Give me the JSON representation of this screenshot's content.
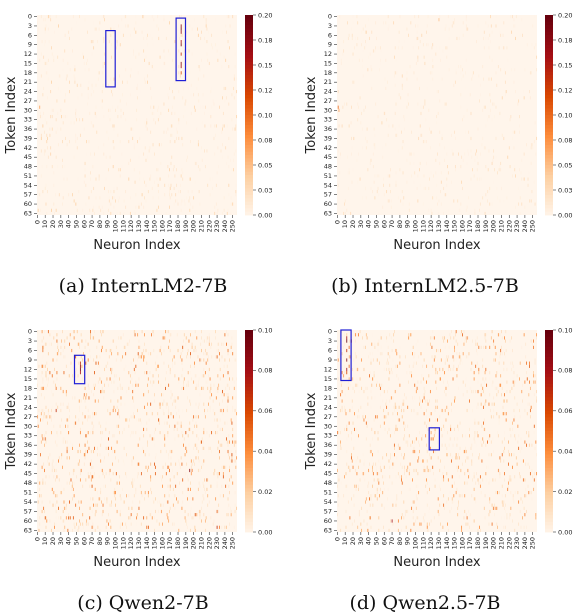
{
  "chart_data": [
    {
      "type": "heatmap",
      "caption": "(a)  InternLM2-7B",
      "xlabel": "Neuron Index",
      "ylabel": "Token Index",
      "x_ticks": [
        0,
        10,
        20,
        30,
        40,
        50,
        60,
        70,
        80,
        90,
        100,
        110,
        120,
        130,
        140,
        150,
        160,
        170,
        180,
        190,
        200,
        210,
        220,
        230,
        240,
        250
      ],
      "y_ticks": [
        0,
        3,
        6,
        9,
        12,
        15,
        18,
        21,
        24,
        27,
        30,
        33,
        36,
        39,
        42,
        45,
        48,
        51,
        54,
        57,
        60,
        63
      ],
      "colorbar": {
        "ticks": [
          "0.00",
          "0.03",
          "0.05",
          "0.08",
          "0.10",
          "0.12",
          "0.15",
          "0.18",
          "0.20"
        ],
        "min": 0,
        "max": 0.2
      },
      "colormap": [
        "#fff5eb",
        "#fdd0a2",
        "#fd8d3c",
        "#d94801",
        "#a50f15",
        "#67000d"
      ],
      "seed": 11,
      "density": 0.05,
      "max_noise": 0.035,
      "highlights": [
        {
          "x0": 88,
          "x1": 100,
          "y0": 5,
          "y1": 23
        },
        {
          "x0": 178,
          "x1": 190,
          "y0": 1,
          "y1": 21
        }
      ],
      "hot": [
        {
          "x": 184,
          "y": 3,
          "v": 0.18
        },
        {
          "x": 184,
          "y": 4,
          "v": 0.2
        },
        {
          "x": 184,
          "y": 5,
          "v": 0.17
        },
        {
          "x": 184,
          "y": 8,
          "v": 0.16
        },
        {
          "x": 184,
          "y": 9,
          "v": 0.19
        },
        {
          "x": 184,
          "y": 12,
          "v": 0.14
        },
        {
          "x": 184,
          "y": 15,
          "v": 0.18
        },
        {
          "x": 184,
          "y": 16,
          "v": 0.17
        },
        {
          "x": 184,
          "y": 18,
          "v": 0.12
        },
        {
          "x": 3,
          "y": 29,
          "v": 0.07
        }
      ]
    },
    {
      "type": "heatmap",
      "caption": "(b)  InternLM2.5-7B",
      "xlabel": "Neuron Index",
      "ylabel": "Token Index",
      "x_ticks": [
        0,
        10,
        20,
        30,
        40,
        50,
        60,
        70,
        80,
        90,
        100,
        110,
        120,
        130,
        140,
        150,
        160,
        170,
        180,
        190,
        200,
        210,
        220,
        230,
        240,
        250
      ],
      "y_ticks": [
        0,
        3,
        6,
        9,
        12,
        15,
        18,
        21,
        24,
        27,
        30,
        33,
        36,
        39,
        42,
        45,
        48,
        51,
        54,
        57,
        60,
        63
      ],
      "colorbar": {
        "ticks": [
          "0.00",
          "0.03",
          "0.05",
          "0.08",
          "0.10",
          "0.12",
          "0.15",
          "0.18",
          "0.20"
        ],
        "min": 0,
        "max": 0.2
      },
      "colormap": [
        "#fff5eb",
        "#fdd0a2",
        "#fd8d3c",
        "#d94801",
        "#a50f15",
        "#67000d"
      ],
      "seed": 23,
      "density": 0.04,
      "max_noise": 0.03,
      "highlights": [],
      "hot": [
        {
          "x": 1,
          "y": 29,
          "v": 0.1
        },
        {
          "x": 2,
          "y": 30,
          "v": 0.07
        },
        {
          "x": 130,
          "y": 1,
          "v": 0.05
        }
      ]
    },
    {
      "type": "heatmap",
      "caption": "(c)  Qwen2-7B",
      "xlabel": "Neuron Index",
      "ylabel": "Token Index",
      "x_ticks": [
        0,
        10,
        20,
        30,
        40,
        50,
        60,
        70,
        80,
        90,
        100,
        110,
        120,
        130,
        140,
        150,
        160,
        170,
        180,
        190,
        200,
        210,
        220,
        230,
        240,
        250
      ],
      "y_ticks": [
        0,
        3,
        6,
        9,
        12,
        15,
        18,
        21,
        24,
        27,
        30,
        33,
        36,
        39,
        42,
        45,
        48,
        51,
        54,
        57,
        60,
        63
      ],
      "colorbar": {
        "ticks": [
          "0.00",
          "0.02",
          "0.04",
          "0.06",
          "0.08",
          "0.10"
        ],
        "min": 0,
        "max": 0.1
      },
      "colormap": [
        "#fff5eb",
        "#fdd0a2",
        "#fd8d3c",
        "#d94801",
        "#a50f15",
        "#67000d"
      ],
      "seed": 37,
      "density": 0.09,
      "max_noise": 0.055,
      "highlights": [
        {
          "x0": 48,
          "x1": 61,
          "y0": 8,
          "y1": 17
        }
      ],
      "hot": [
        {
          "x": 55,
          "y": 10,
          "v": 0.07
        },
        {
          "x": 55,
          "y": 11,
          "v": 0.09
        },
        {
          "x": 55,
          "y": 12,
          "v": 0.1
        },
        {
          "x": 55,
          "y": 13,
          "v": 0.08
        },
        {
          "x": 24,
          "y": 25,
          "v": 0.07
        },
        {
          "x": 195,
          "y": 44,
          "v": 0.09
        },
        {
          "x": 249,
          "y": 39,
          "v": 0.06
        },
        {
          "x": 230,
          "y": 62,
          "v": 0.07
        }
      ]
    },
    {
      "type": "heatmap",
      "caption": "(d)  Qwen2.5-7B",
      "xlabel": "Neuron Index",
      "ylabel": "Token Index",
      "x_ticks": [
        0,
        10,
        20,
        30,
        40,
        50,
        60,
        70,
        80,
        90,
        100,
        110,
        120,
        130,
        140,
        150,
        160,
        170,
        180,
        190,
        200,
        210,
        220,
        230,
        240,
        250
      ],
      "y_ticks": [
        0,
        3,
        6,
        9,
        12,
        15,
        18,
        21,
        24,
        27,
        30,
        33,
        36,
        39,
        42,
        45,
        48,
        51,
        54,
        57,
        60,
        63
      ],
      "colorbar": {
        "ticks": [
          "0.00",
          "0.02",
          "0.04",
          "0.06",
          "0.08",
          "0.10"
        ],
        "min": 0,
        "max": 0.1
      },
      "colormap": [
        "#fff5eb",
        "#fdd0a2",
        "#fd8d3c",
        "#d94801",
        "#a50f15",
        "#67000d"
      ],
      "seed": 53,
      "density": 0.08,
      "max_noise": 0.05,
      "highlights": [
        {
          "x0": 5,
          "x1": 18,
          "y0": 0,
          "y1": 16
        },
        {
          "x0": 118,
          "x1": 131,
          "y0": 31,
          "y1": 38
        }
      ],
      "hot": [
        {
          "x": 12,
          "y": 2,
          "v": 0.08
        },
        {
          "x": 12,
          "y": 3,
          "v": 0.1
        },
        {
          "x": 12,
          "y": 6,
          "v": 0.07
        },
        {
          "x": 12,
          "y": 9,
          "v": 0.09
        },
        {
          "x": 12,
          "y": 12,
          "v": 0.08
        },
        {
          "x": 12,
          "y": 13,
          "v": 0.06
        },
        {
          "x": 70,
          "y": 60,
          "v": 0.08
        },
        {
          "x": 136,
          "y": 55,
          "v": 0.05
        }
      ]
    }
  ]
}
